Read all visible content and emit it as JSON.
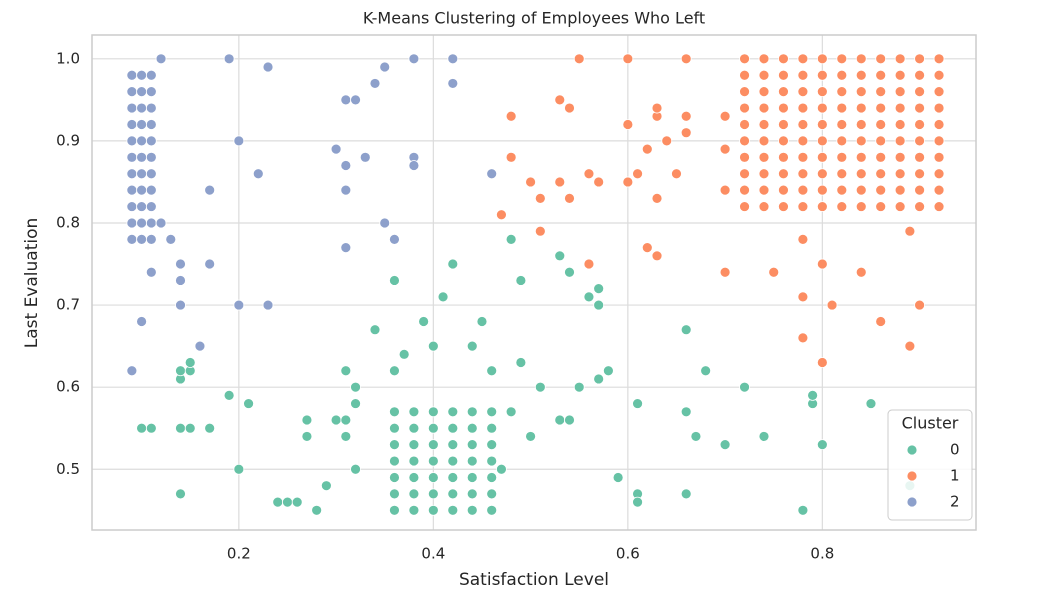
{
  "chart_data": {
    "type": "scatter",
    "title": "K-Means Clustering of Employees Who Left",
    "x_label": "Satisfaction Level",
    "y_label": "Last Evaluation",
    "xlim": [
      0.049,
      0.958
    ],
    "ylim": [
      0.426,
      1.029
    ],
    "xticks": [
      0.2,
      0.4,
      0.6,
      0.8
    ],
    "yticks": [
      0.5,
      0.6,
      0.7,
      0.8,
      0.9,
      {
        "value": 1,
        "label": "1.0"
      }
    ],
    "grid": true,
    "legend_title": "Cluster",
    "legend_position": "lower right",
    "series": [
      {
        "name": "0",
        "color": "#66c2a5",
        "x": [
          0.36,
          0.36,
          0.36,
          0.36,
          0.36,
          0.36,
          0.36,
          0.38,
          0.38,
          0.38,
          0.38,
          0.38,
          0.38,
          0.38,
          0.4,
          0.4,
          0.4,
          0.4,
          0.4,
          0.4,
          0.4,
          0.42,
          0.42,
          0.42,
          0.42,
          0.42,
          0.42,
          0.42,
          0.44,
          0.44,
          0.44,
          0.44,
          0.44,
          0.44,
          0.44,
          0.46,
          0.46,
          0.46,
          0.46,
          0.46,
          0.46,
          0.46,
          0.1,
          0.11,
          0.14,
          0.14,
          0.15,
          0.17,
          0.14,
          0.14,
          0.15,
          0.15,
          0.19,
          0.2,
          0.21,
          0.24,
          0.25,
          0.26,
          0.28,
          0.29,
          0.27,
          0.27,
          0.3,
          0.31,
          0.31,
          0.32,
          0.32,
          0.32,
          0.31,
          0.34,
          0.36,
          0.36,
          0.37,
          0.39,
          0.4,
          0.41,
          0.42,
          0.44,
          0.45,
          0.46,
          0.47,
          0.48,
          0.48,
          0.49,
          0.49,
          0.5,
          0.51,
          0.53,
          0.53,
          0.54,
          0.54,
          0.55,
          0.56,
          0.57,
          0.57,
          0.57,
          0.58,
          0.59,
          0.61,
          0.61,
          0.61,
          0.66,
          0.66,
          0.66,
          0.67,
          0.68,
          0.7,
          0.72,
          0.74,
          0.78,
          0.79,
          0.79,
          0.8,
          0.85,
          0.89
        ],
        "y": [
          0.45,
          0.47,
          0.49,
          0.51,
          0.53,
          0.55,
          0.57,
          0.45,
          0.47,
          0.49,
          0.51,
          0.53,
          0.55,
          0.57,
          0.45,
          0.47,
          0.49,
          0.51,
          0.53,
          0.55,
          0.57,
          0.45,
          0.47,
          0.49,
          0.51,
          0.53,
          0.55,
          0.57,
          0.45,
          0.47,
          0.49,
          0.51,
          0.53,
          0.55,
          0.57,
          0.45,
          0.47,
          0.49,
          0.51,
          0.53,
          0.55,
          0.57,
          0.55,
          0.55,
          0.47,
          0.55,
          0.55,
          0.55,
          0.61,
          0.62,
          0.62,
          0.63,
          0.59,
          0.5,
          0.58,
          0.46,
          0.46,
          0.46,
          0.45,
          0.48,
          0.54,
          0.56,
          0.56,
          0.54,
          0.56,
          0.5,
          0.58,
          0.6,
          0.62,
          0.67,
          0.62,
          0.73,
          0.64,
          0.68,
          0.65,
          0.71,
          0.75,
          0.65,
          0.68,
          0.62,
          0.5,
          0.57,
          0.78,
          0.73,
          0.63,
          0.54,
          0.6,
          0.76,
          0.56,
          0.56,
          0.74,
          0.6,
          0.71,
          0.7,
          0.72,
          0.61,
          0.62,
          0.49,
          0.58,
          0.47,
          0.46,
          0.67,
          0.57,
          0.47,
          0.54,
          0.62,
          0.53,
          0.6,
          0.54,
          0.45,
          0.58,
          0.59,
          0.53,
          0.58,
          0.48
        ]
      },
      {
        "name": "1",
        "color": "#fc8d62",
        "x": [
          0.72,
          0.72,
          0.72,
          0.72,
          0.72,
          0.72,
          0.72,
          0.72,
          0.72,
          0.72,
          0.74,
          0.74,
          0.74,
          0.74,
          0.74,
          0.74,
          0.74,
          0.74,
          0.74,
          0.74,
          0.76,
          0.76,
          0.76,
          0.76,
          0.76,
          0.76,
          0.76,
          0.76,
          0.76,
          0.76,
          0.78,
          0.78,
          0.78,
          0.78,
          0.78,
          0.78,
          0.78,
          0.78,
          0.78,
          0.78,
          0.8,
          0.8,
          0.8,
          0.8,
          0.8,
          0.8,
          0.8,
          0.8,
          0.8,
          0.8,
          0.82,
          0.82,
          0.82,
          0.82,
          0.82,
          0.82,
          0.82,
          0.82,
          0.82,
          0.82,
          0.84,
          0.84,
          0.84,
          0.84,
          0.84,
          0.84,
          0.84,
          0.84,
          0.84,
          0.84,
          0.86,
          0.86,
          0.86,
          0.86,
          0.86,
          0.86,
          0.86,
          0.86,
          0.86,
          0.86,
          0.88,
          0.88,
          0.88,
          0.88,
          0.88,
          0.88,
          0.88,
          0.88,
          0.88,
          0.88,
          0.9,
          0.9,
          0.9,
          0.9,
          0.9,
          0.9,
          0.9,
          0.9,
          0.9,
          0.9,
          0.92,
          0.92,
          0.92,
          0.92,
          0.92,
          0.92,
          0.92,
          0.92,
          0.92,
          0.92,
          0.47,
          0.48,
          0.48,
          0.5,
          0.51,
          0.51,
          0.53,
          0.53,
          0.54,
          0.54,
          0.55,
          0.56,
          0.56,
          0.57,
          0.6,
          0.6,
          0.6,
          0.61,
          0.62,
          0.62,
          0.63,
          0.63,
          0.63,
          0.63,
          0.64,
          0.65,
          0.66,
          0.66,
          0.66,
          0.7,
          0.7,
          0.7,
          0.7,
          0.75,
          0.78,
          0.78,
          0.78,
          0.8,
          0.8,
          0.81,
          0.84,
          0.86,
          0.89,
          0.89,
          0.9
        ],
        "y": [
          0.82,
          0.84,
          0.86,
          0.88,
          0.9,
          0.92,
          0.94,
          0.96,
          0.98,
          1.0,
          0.82,
          0.84,
          0.86,
          0.88,
          0.9,
          0.92,
          0.94,
          0.96,
          0.98,
          1.0,
          0.82,
          0.84,
          0.86,
          0.88,
          0.9,
          0.92,
          0.94,
          0.96,
          0.98,
          1.0,
          0.82,
          0.84,
          0.86,
          0.88,
          0.9,
          0.92,
          0.94,
          0.96,
          0.98,
          1.0,
          0.82,
          0.84,
          0.86,
          0.88,
          0.9,
          0.92,
          0.94,
          0.96,
          0.98,
          1.0,
          0.82,
          0.84,
          0.86,
          0.88,
          0.9,
          0.92,
          0.94,
          0.96,
          0.98,
          1.0,
          0.82,
          0.84,
          0.86,
          0.88,
          0.9,
          0.92,
          0.94,
          0.96,
          0.98,
          1.0,
          0.82,
          0.84,
          0.86,
          0.88,
          0.9,
          0.92,
          0.94,
          0.96,
          0.98,
          1.0,
          0.82,
          0.84,
          0.86,
          0.88,
          0.9,
          0.92,
          0.94,
          0.96,
          0.98,
          1.0,
          0.82,
          0.84,
          0.86,
          0.88,
          0.9,
          0.92,
          0.94,
          0.96,
          0.98,
          1.0,
          0.82,
          0.84,
          0.86,
          0.88,
          0.9,
          0.92,
          0.94,
          0.96,
          0.98,
          1.0,
          0.81,
          0.88,
          0.93,
          0.85,
          0.83,
          0.79,
          0.85,
          0.95,
          0.94,
          0.83,
          1.0,
          0.86,
          0.75,
          0.85,
          1.0,
          0.92,
          0.85,
          0.86,
          0.89,
          0.77,
          0.76,
          0.83,
          0.93,
          0.94,
          0.9,
          0.86,
          0.91,
          0.93,
          1.0,
          0.93,
          0.89,
          0.84,
          0.74,
          0.74,
          0.78,
          0.71,
          0.66,
          0.75,
          0.63,
          0.7,
          0.74,
          0.68,
          0.79,
          0.65,
          0.7
        ]
      },
      {
        "name": "2",
        "color": "#8da0cb",
        "x": [
          0.09,
          0.09,
          0.09,
          0.09,
          0.09,
          0.09,
          0.09,
          0.09,
          0.09,
          0.09,
          0.09,
          0.1,
          0.1,
          0.1,
          0.1,
          0.1,
          0.1,
          0.1,
          0.1,
          0.1,
          0.1,
          0.1,
          0.11,
          0.11,
          0.11,
          0.11,
          0.11,
          0.11,
          0.11,
          0.11,
          0.11,
          0.11,
          0.11,
          0.09,
          0.1,
          0.11,
          0.12,
          0.12,
          0.13,
          0.14,
          0.14,
          0.14,
          0.16,
          0.17,
          0.17,
          0.19,
          0.2,
          0.2,
          0.22,
          0.23,
          0.23,
          0.3,
          0.31,
          0.31,
          0.31,
          0.31,
          0.32,
          0.33,
          0.34,
          0.35,
          0.35,
          0.36,
          0.38,
          0.38,
          0.38,
          0.42,
          0.42,
          0.46
        ],
        "y": [
          0.78,
          0.8,
          0.82,
          0.84,
          0.86,
          0.88,
          0.9,
          0.92,
          0.94,
          0.96,
          0.98,
          0.78,
          0.8,
          0.82,
          0.84,
          0.86,
          0.88,
          0.9,
          0.92,
          0.94,
          0.96,
          0.98,
          0.78,
          0.8,
          0.82,
          0.84,
          0.86,
          0.88,
          0.9,
          0.92,
          0.94,
          0.96,
          0.98,
          0.62,
          0.68,
          0.74,
          0.8,
          1.0,
          0.78,
          0.75,
          0.73,
          0.7,
          0.65,
          0.84,
          0.75,
          1.0,
          0.9,
          0.7,
          0.86,
          0.99,
          0.7,
          0.89,
          0.95,
          0.87,
          0.84,
          0.77,
          0.95,
          0.88,
          0.97,
          0.99,
          0.8,
          0.78,
          1.0,
          0.88,
          0.87,
          1.0,
          0.97,
          0.86
        ]
      }
    ]
  }
}
